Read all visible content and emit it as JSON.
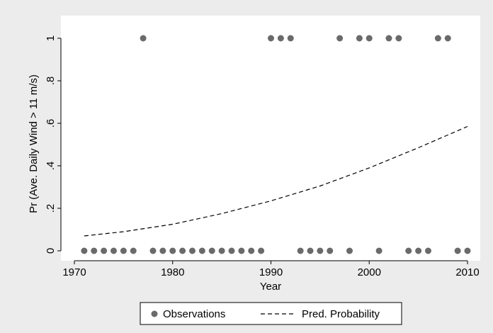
{
  "chart_data": {
    "type": "scatter",
    "title": "",
    "xlabel": "Year",
    "ylabel": "Pr (Ave. Daily Wind > 11 m/s)",
    "xlim": [
      1970,
      2010
    ],
    "ylim": [
      0,
      1
    ],
    "x_ticks": [
      1970,
      1980,
      1990,
      2000,
      2010
    ],
    "x_tick_labels": [
      "1970",
      "1980",
      "1990",
      "2000",
      "2010"
    ],
    "y_ticks": [
      0,
      0.2,
      0.4,
      0.6,
      0.8,
      1
    ],
    "y_tick_labels": [
      "0",
      ".2",
      ".4",
      ".6",
      ".8",
      "1"
    ],
    "grid": false,
    "legend_position": "bottom",
    "colors": {
      "background": "#ececec",
      "plot_area": "#ffffff",
      "points": "#6a6a6a",
      "line": "#000000"
    },
    "series": [
      {
        "name": "Observations",
        "kind": "points",
        "x": [
          1971,
          1972,
          1973,
          1974,
          1975,
          1976,
          1977,
          1978,
          1979,
          1980,
          1981,
          1982,
          1983,
          1984,
          1985,
          1986,
          1987,
          1988,
          1989,
          1990,
          1991,
          1992,
          1993,
          1994,
          1995,
          1996,
          1997,
          1998,
          1999,
          2000,
          2001,
          2002,
          2003,
          2004,
          2005,
          2006,
          2007,
          2008,
          2009,
          2010
        ],
        "y": [
          0,
          0,
          0,
          0,
          0,
          0,
          1,
          0,
          0,
          0,
          0,
          0,
          0,
          0,
          0,
          0,
          0,
          0,
          0,
          1,
          1,
          1,
          0,
          0,
          0,
          0,
          1,
          0,
          1,
          1,
          0,
          1,
          1,
          0,
          0,
          0,
          1,
          1,
          0,
          0
        ]
      },
      {
        "name": "Pred. Probability",
        "kind": "dashed-line",
        "x": [
          1971,
          1975,
          1980,
          1985,
          1990,
          1995,
          2000,
          2005,
          2010
        ],
        "y": [
          0.07,
          0.09,
          0.125,
          0.175,
          0.235,
          0.305,
          0.39,
          0.485,
          0.585
        ]
      }
    ]
  }
}
